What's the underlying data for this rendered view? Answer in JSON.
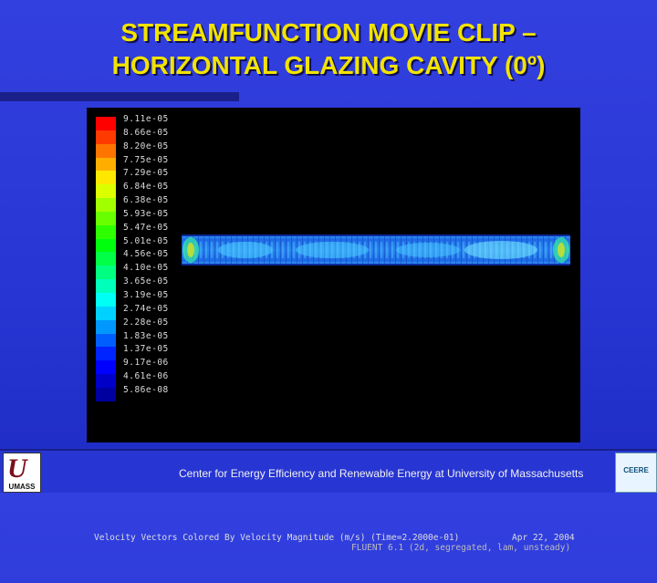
{
  "title": {
    "line1": "STREAMFUNCTION MOVIE CLIP –",
    "line2": "HORIZONTAL GLAZING CAVITY (0º)"
  },
  "legend": {
    "labels": [
      "9.11e-05",
      "8.66e-05",
      "8.20e-05",
      "7.75e-05",
      "7.29e-05",
      "6.84e-05",
      "6.38e-05",
      "5.93e-05",
      "5.47e-05",
      "5.01e-05",
      "4.56e-05",
      "4.10e-05",
      "3.65e-05",
      "3.19e-05",
      "2.74e-05",
      "2.28e-05",
      "1.83e-05",
      "1.37e-05",
      "9.17e-06",
      "4.61e-06",
      "5.86e-08"
    ],
    "colors": [
      "#ff0000",
      "#ff3a00",
      "#ff7400",
      "#ffae00",
      "#ffe800",
      "#dcff00",
      "#a2ff00",
      "#68ff00",
      "#2eff00",
      "#00ff0c",
      "#00ff46",
      "#00ff80",
      "#00ffba",
      "#00fff4",
      "#00d2ff",
      "#0098ff",
      "#005eff",
      "#0024ff",
      "#0000ff",
      "#0000c8",
      "#0000a0"
    ]
  },
  "viewer": {
    "caption": "Velocity Vectors Colored By Velocity Magnitude (m/s) (Time=2.2000e-01)",
    "date": "Apr 22, 2004",
    "subcaption": "FLUENT 6.1 (2d, segregated, lam, unsteady)"
  },
  "footer": {
    "caption": "Center for Energy Efficiency and Renewable Energy at University of Massachusetts",
    "left_logo_text": "UMASS",
    "right_logo_text": "CEERE"
  }
}
